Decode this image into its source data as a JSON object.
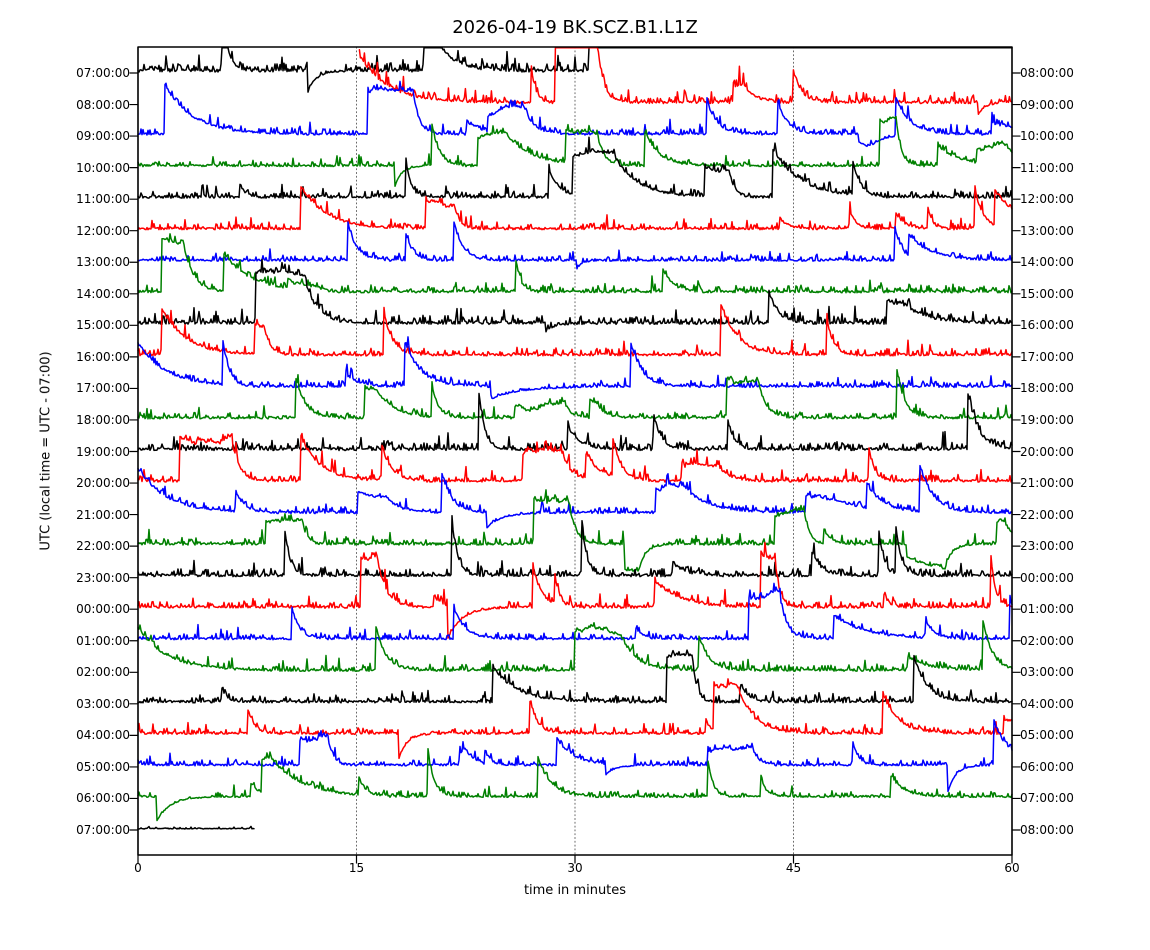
{
  "chart_data": {
    "type": "line",
    "subtype": "helicorder-dayplot",
    "title": "2026-04-19 BK.SCZ.B1.L1Z",
    "xlabel": "time in minutes",
    "ylabel": "UTC (local time = UTC - 07:00)",
    "xlim": [
      0,
      60
    ],
    "x_ticks": [
      0,
      15,
      30,
      45,
      60
    ],
    "grid": {
      "vertical_dotted_minutes": [
        15,
        30,
        45
      ],
      "style": "dotted",
      "color": "#444444"
    },
    "interval_minutes": 60,
    "utc_offset_note": "local time = UTC - 07:00",
    "color_cycle": [
      "#000000",
      "#ff0000",
      "#0000ff",
      "#008000"
    ],
    "legend": "none",
    "rows": [
      {
        "utc": "07:00:00",
        "end": "08:00:00",
        "color": "#000000",
        "start_min": 0,
        "end_min": 33.6,
        "end_clipped": true,
        "start_high": false,
        "amp": 1.5,
        "seed": 3
      },
      {
        "utc": "08:00:00",
        "end": "09:00:00",
        "color": "#ff0000",
        "start_min": 15.2,
        "end_min": 60,
        "end_clipped": false,
        "start_high": true,
        "amp": 1.3,
        "seed": 7
      },
      {
        "utc": "09:00:00",
        "end": "10:00:00",
        "color": "#0000ff",
        "start_min": 0,
        "end_min": 60,
        "end_clipped": false,
        "start_high": false,
        "amp": 1.1,
        "seed": 12
      },
      {
        "utc": "10:00:00",
        "end": "11:00:00",
        "color": "#008000",
        "start_min": 0,
        "end_min": 60,
        "end_clipped": false,
        "start_high": false,
        "amp": 1.0,
        "seed": 19
      },
      {
        "utc": "11:00:00",
        "end": "12:00:00",
        "color": "#000000",
        "start_min": 0,
        "end_min": 60,
        "end_clipped": false,
        "start_high": false,
        "amp": 1.2,
        "seed": 23
      },
      {
        "utc": "12:00:00",
        "end": "13:00:00",
        "color": "#ff0000",
        "start_min": 0,
        "end_min": 60,
        "end_clipped": false,
        "start_high": false,
        "amp": 1.1,
        "seed": 31
      },
      {
        "utc": "13:00:00",
        "end": "14:00:00",
        "color": "#0000ff",
        "start_min": 0,
        "end_min": 60,
        "end_clipped": false,
        "start_high": false,
        "amp": 1.0,
        "seed": 37
      },
      {
        "utc": "14:00:00",
        "end": "15:00:00",
        "color": "#008000",
        "start_min": 0,
        "end_min": 60,
        "end_clipped": false,
        "start_high": false,
        "amp": 1.2,
        "seed": 41
      },
      {
        "utc": "15:00:00",
        "end": "16:00:00",
        "color": "#000000",
        "start_min": 0,
        "end_min": 60,
        "end_clipped": false,
        "start_high": false,
        "amp": 1.5,
        "seed": 47
      },
      {
        "utc": "16:00:00",
        "end": "17:00:00",
        "color": "#ff0000",
        "start_min": 0,
        "end_min": 60,
        "end_clipped": false,
        "start_high": false,
        "amp": 1.2,
        "seed": 53
      },
      {
        "utc": "17:00:00",
        "end": "18:00:00",
        "color": "#0000ff",
        "start_min": 0,
        "end_min": 60,
        "end_clipped": false,
        "start_high": true,
        "amp": 1.1,
        "seed": 59
      },
      {
        "utc": "18:00:00",
        "end": "19:00:00",
        "color": "#008000",
        "start_min": 0,
        "end_min": 60,
        "end_clipped": false,
        "start_high": false,
        "amp": 1.1,
        "seed": 61
      },
      {
        "utc": "19:00:00",
        "end": "20:00:00",
        "color": "#000000",
        "start_min": 0,
        "end_min": 60,
        "end_clipped": false,
        "start_high": false,
        "amp": 1.4,
        "seed": 67
      },
      {
        "utc": "20:00:00",
        "end": "21:00:00",
        "color": "#ff0000",
        "start_min": 0,
        "end_min": 60,
        "end_clipped": false,
        "start_high": false,
        "amp": 1.2,
        "seed": 71
      },
      {
        "utc": "21:00:00",
        "end": "22:00:00",
        "color": "#0000ff",
        "start_min": 0,
        "end_min": 60,
        "end_clipped": false,
        "start_high": true,
        "amp": 1.1,
        "seed": 79
      },
      {
        "utc": "22:00:00",
        "end": "23:00:00",
        "color": "#008000",
        "start_min": 0,
        "end_min": 60,
        "end_clipped": false,
        "start_high": false,
        "amp": 1.2,
        "seed": 83
      },
      {
        "utc": "23:00:00",
        "end": "00:00:00",
        "color": "#000000",
        "start_min": 0,
        "end_min": 60,
        "end_clipped": false,
        "start_high": false,
        "amp": 1.3,
        "seed": 89
      },
      {
        "utc": "00:00:00",
        "end": "01:00:00",
        "color": "#ff0000",
        "start_min": 0,
        "end_min": 60,
        "end_clipped": false,
        "start_high": false,
        "amp": 1.2,
        "seed": 97
      },
      {
        "utc": "01:00:00",
        "end": "02:00:00",
        "color": "#0000ff",
        "start_min": 0,
        "end_min": 60,
        "end_clipped": false,
        "start_high": false,
        "amp": 1.1,
        "seed": 101
      },
      {
        "utc": "02:00:00",
        "end": "03:00:00",
        "color": "#008000",
        "start_min": 0,
        "end_min": 60,
        "end_clipped": false,
        "start_high": true,
        "amp": 1.1,
        "seed": 103
      },
      {
        "utc": "03:00:00",
        "end": "04:00:00",
        "color": "#000000",
        "start_min": 0,
        "end_min": 60,
        "end_clipped": false,
        "start_high": false,
        "amp": 1.2,
        "seed": 107
      },
      {
        "utc": "04:00:00",
        "end": "05:00:00",
        "color": "#ff0000",
        "start_min": 0,
        "end_min": 60,
        "end_clipped": false,
        "start_high": false,
        "amp": 1.1,
        "seed": 109
      },
      {
        "utc": "05:00:00",
        "end": "06:00:00",
        "color": "#0000ff",
        "start_min": 0,
        "end_min": 60,
        "end_clipped": false,
        "start_high": false,
        "amp": 1.0,
        "seed": 113
      },
      {
        "utc": "06:00:00",
        "end": "07:00:00",
        "color": "#008000",
        "start_min": 0,
        "end_min": 60,
        "end_clipped": false,
        "start_high": false,
        "amp": 1.0,
        "seed": 127
      },
      {
        "utc": "07:00:00",
        "end": "08:00:00",
        "color": "#000000",
        "start_min": 0,
        "end_min": 8.0,
        "end_clipped": false,
        "start_high": false,
        "amp": 0.35,
        "seed": 131
      }
    ]
  }
}
